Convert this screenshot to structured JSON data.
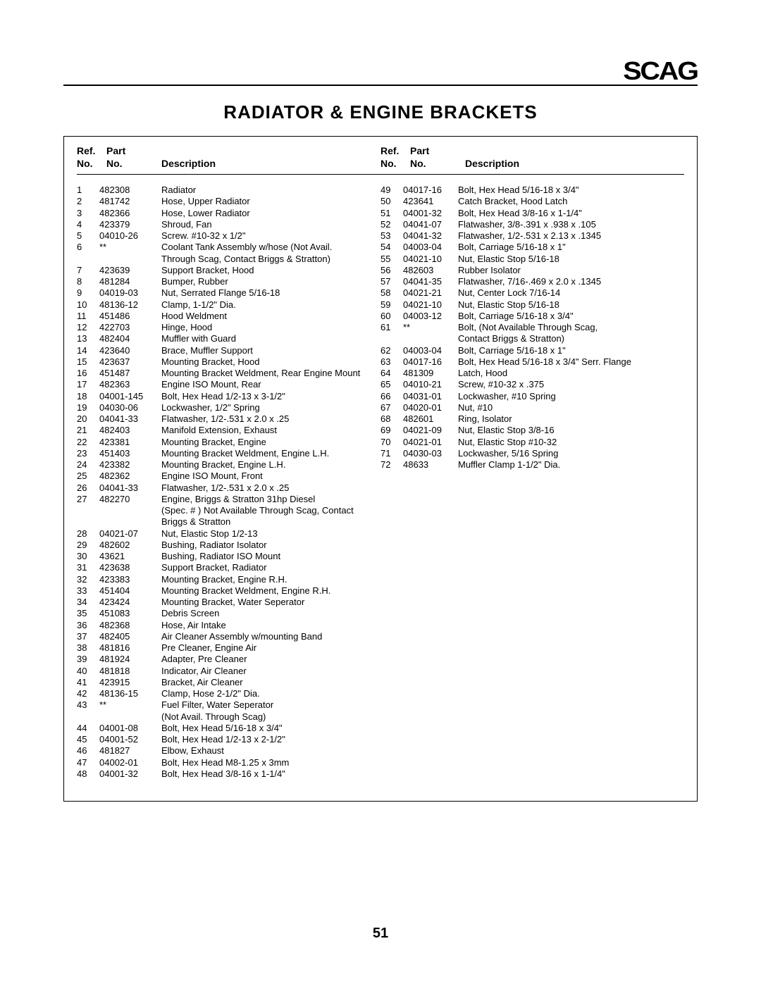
{
  "logo_text": "SCAG",
  "title": "RADIATOR  &  ENGINE  BRACKETS",
  "page_number": "51",
  "header": {
    "ref_line1": "Ref.",
    "ref_line2": "No.",
    "part_line1": "Part",
    "part_line2": "No.",
    "desc": "Description"
  },
  "left_rows": [
    {
      "r": "1",
      "p": "482308",
      "d": "Radiator"
    },
    {
      "r": "2",
      "p": "481742",
      "d": "Hose, Upper Radiator"
    },
    {
      "r": "3",
      "p": "482366",
      "d": "Hose, Lower Radiator"
    },
    {
      "r": "4",
      "p": "423379",
      "d": "Shroud, Fan"
    },
    {
      "r": "5",
      "p": "04010-26",
      "d": "Screw. #10-32 x 1/2\""
    },
    {
      "r": "6",
      "p": "**",
      "d": "Coolant Tank Assembly w/hose (Not Avail."
    },
    {
      "r": "",
      "p": "",
      "d": "Through Scag, Contact Briggs & Stratton)"
    },
    {
      "r": "7",
      "p": "423639",
      "d": "Support Bracket, Hood"
    },
    {
      "r": "8",
      "p": "481284",
      "d": "Bumper, Rubber"
    },
    {
      "r": "9",
      "p": "04019-03",
      "d": "Nut, Serrated Flange 5/16-18"
    },
    {
      "r": "10",
      "p": "48136-12",
      "d": "Clamp, 1-1/2\" Dia."
    },
    {
      "r": "11",
      "p": "451486",
      "d": "Hood Weldment"
    },
    {
      "r": "12",
      "p": "422703",
      "d": "Hinge, Hood"
    },
    {
      "r": "13",
      "p": "482404",
      "d": "Muffler with Guard"
    },
    {
      "r": "14",
      "p": "423640",
      "d": "Brace, Muffler Support"
    },
    {
      "r": "15",
      "p": "423637",
      "d": "Mounting Bracket, Hood"
    },
    {
      "r": "16",
      "p": "451487",
      "d": "Mounting Bracket Weldment, Rear Engine Mount"
    },
    {
      "r": "17",
      "p": "482363",
      "d": "Engine ISO Mount, Rear"
    },
    {
      "r": "18",
      "p": "04001-145",
      "d": "Bolt, Hex Head 1/2-13 x 3-1/2\""
    },
    {
      "r": "19",
      "p": "04030-06",
      "d": "Lockwasher, 1/2\" Spring"
    },
    {
      "r": "20",
      "p": "04041-33",
      "d": "Flatwasher, 1/2-.531 x 2.0 x .25"
    },
    {
      "r": "21",
      "p": "482403",
      "d": "Manifold Extension, Exhaust"
    },
    {
      "r": "22",
      "p": "423381",
      "d": "Mounting Bracket, Engine"
    },
    {
      "r": "23",
      "p": "451403",
      "d": "Mounting Bracket Weldment, Engine L.H."
    },
    {
      "r": "24",
      "p": "423382",
      "d": "Mounting Bracket, Engine L.H."
    },
    {
      "r": "25",
      "p": "482362",
      "d": "Engine ISO Mount, Front"
    },
    {
      "r": "26",
      "p": "04041-33",
      "d": "Flatwasher, 1/2-.531 x 2.0 x .25"
    },
    {
      "r": "27",
      "p": "482270",
      "d": "Engine, Briggs & Stratton 31hp Diesel"
    },
    {
      "r": "",
      "p": "",
      "d": "(Spec. # ) Not Available Through Scag, Contact"
    },
    {
      "r": "",
      "p": "",
      "d": "Briggs & Stratton"
    },
    {
      "r": "28",
      "p": "04021-07",
      "d": "Nut, Elastic Stop 1/2-13"
    },
    {
      "r": "29",
      "p": "482602",
      "d": "Bushing, Radiator Isolator"
    },
    {
      "r": "30",
      "p": "43621",
      "d": "Bushing, Radiator ISO Mount"
    },
    {
      "r": "31",
      "p": "423638",
      "d": "Support Bracket, Radiator"
    },
    {
      "r": "32",
      "p": "423383",
      "d": "Mounting Bracket, Engine R.H."
    },
    {
      "r": "33",
      "p": "451404",
      "d": "Mounting Bracket Weldment, Engine R.H."
    },
    {
      "r": "34",
      "p": "423424",
      "d": "Mounting Bracket, Water Seperator"
    },
    {
      "r": "35",
      "p": "451083",
      "d": "Debris Screen"
    },
    {
      "r": "36",
      "p": "482368",
      "d": "Hose, Air Intake"
    },
    {
      "r": "37",
      "p": "482405",
      "d": "Air Cleaner Assembly w/mounting Band"
    },
    {
      "r": "38",
      "p": "481816",
      "d": "Pre Cleaner, Engine Air"
    },
    {
      "r": "39",
      "p": "481924",
      "d": "Adapter, Pre Cleaner"
    },
    {
      "r": "40",
      "p": "481818",
      "d": "Indicator, Air Cleaner"
    },
    {
      "r": "41",
      "p": "423915",
      "d": "Bracket, Air Cleaner"
    },
    {
      "r": "42",
      "p": "48136-15",
      "d": "Clamp, Hose 2-1/2\" Dia."
    },
    {
      "r": "43",
      "p": "**",
      "d": "Fuel Filter, Water Seperator"
    },
    {
      "r": "",
      "p": "",
      "d": "(Not Avail. Through Scag)"
    },
    {
      "r": "44",
      "p": "04001-08",
      "d": "Bolt, Hex Head 5/16-18 x 3/4\""
    },
    {
      "r": "45",
      "p": "04001-52",
      "d": "Bolt, Hex Head 1/2-13 x 2-1/2\""
    },
    {
      "r": "46",
      "p": "481827",
      "d": "Elbow, Exhaust"
    },
    {
      "r": "47",
      "p": "04002-01",
      "d": "Bolt, Hex Head M8-1.25 x 3mm"
    },
    {
      "r": "48",
      "p": "04001-32",
      "d": "Bolt, Hex Head 3/8-16 x 1-1/4\""
    }
  ],
  "right_rows": [
    {
      "r": "49",
      "p": "04017-16",
      "d": "Bolt, Hex Head 5/16-18 x 3/4\""
    },
    {
      "r": "50",
      "p": "423641",
      "d": "Catch Bracket, Hood Latch"
    },
    {
      "r": "51",
      "p": "04001-32",
      "d": "Bolt, Hex Head 3/8-16 x 1-1/4\""
    },
    {
      "r": "52",
      "p": "04041-07",
      "d": "Flatwasher, 3/8-.391 x .938 x .105"
    },
    {
      "r": "53",
      "p": "04041-32",
      "d": "Flatwasher, 1/2-.531 x 2.13 x .1345"
    },
    {
      "r": "54",
      "p": "04003-04",
      "d": "Bolt, Carriage 5/16-18 x 1\""
    },
    {
      "r": "55",
      "p": "04021-10",
      "d": "Nut, Elastic Stop 5/16-18"
    },
    {
      "r": "56",
      "p": "482603",
      "d": "Rubber Isolator"
    },
    {
      "r": "57",
      "p": "04041-35",
      "d": "Flatwasher, 7/16-.469 x 2.0 x .1345"
    },
    {
      "r": "58",
      "p": "04021-21",
      "d": "Nut, Center Lock 7/16-14"
    },
    {
      "r": "59",
      "p": "04021-10",
      "d": "Nut, Elastic Stop 5/16-18"
    },
    {
      "r": "60",
      "p": "04003-12",
      "d": "Bolt, Carriage 5/16-18 x 3/4\""
    },
    {
      "r": "61",
      "p": "**",
      "d": "Bolt, (Not Available Through Scag,"
    },
    {
      "r": "",
      "p": "",
      "d": "Contact Briggs & Stratton)"
    },
    {
      "r": "62",
      "p": "04003-04",
      "d": "Bolt, Carriage 5/16-18 x 1\""
    },
    {
      "r": "63",
      "p": "04017-16",
      "d": "Bolt, Hex Head 5/16-18 x 3/4\" Serr. Flange"
    },
    {
      "r": "64",
      "p": "481309",
      "d": "Latch, Hood"
    },
    {
      "r": "65",
      "p": "04010-21",
      "d": "Screw, #10-32 x .375"
    },
    {
      "r": "66",
      "p": "04031-01",
      "d": "Lockwasher, #10 Spring"
    },
    {
      "r": "67",
      "p": "04020-01",
      "d": "Nut, #10"
    },
    {
      "r": "68",
      "p": "482601",
      "d": "Ring, Isolator"
    },
    {
      "r": "69",
      "p": "04021-09",
      "d": "Nut, Elastic Stop 3/8-16"
    },
    {
      "r": "70",
      "p": "04021-01",
      "d": "Nut, Elastic Stop #10-32"
    },
    {
      "r": "71",
      "p": "04030-03",
      "d": "Lockwasher, 5/16 Spring"
    },
    {
      "r": "72",
      "p": "48633",
      "d": "Muffler Clamp 1-1/2\" Dia."
    }
  ]
}
